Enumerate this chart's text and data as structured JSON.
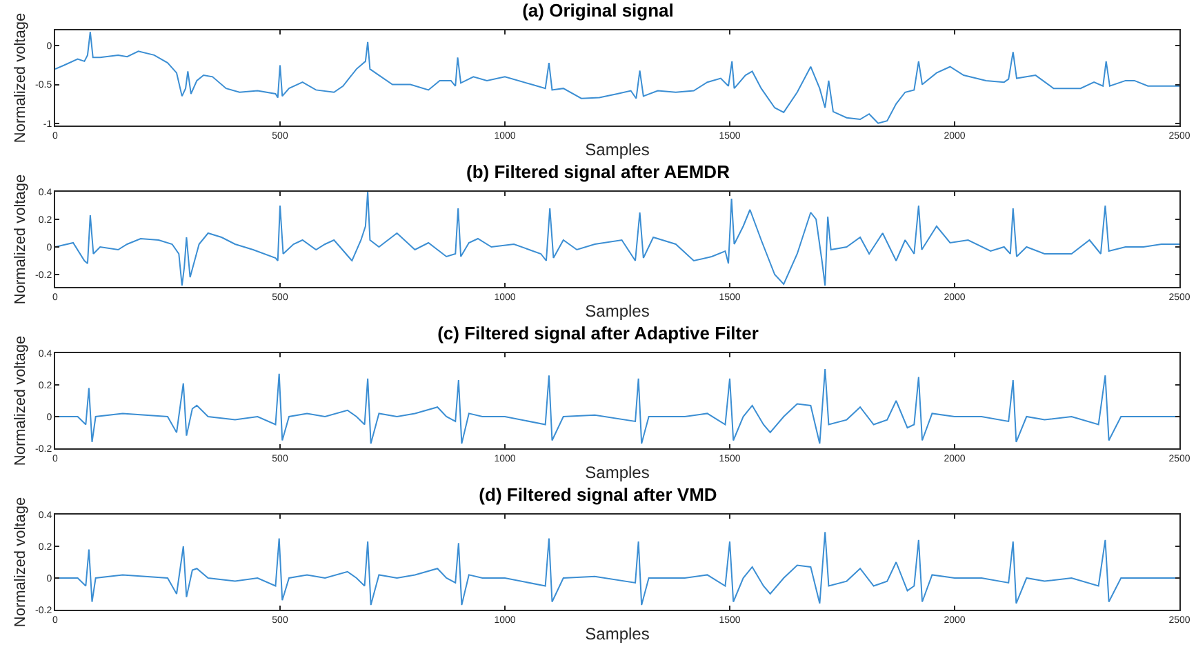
{
  "chart_data": [
    {
      "type": "line",
      "title": "(a) Original signal",
      "xlabel": "Samples",
      "ylabel": "Normalized voltage",
      "xlim": [
        0,
        2500
      ],
      "xticks": [
        0,
        500,
        1000,
        1500,
        2000,
        2500
      ],
      "ylim": [
        -1.03,
        0.2
      ],
      "yticks": [
        -1,
        -0.5,
        0
      ],
      "grid": false,
      "series": [
        {
          "color": "#3b8ed3",
          "x": [
            0,
            20,
            50,
            65,
            72,
            78,
            84,
            100,
            140,
            160,
            185,
            220,
            250,
            270,
            282,
            290,
            295,
            302,
            315,
            330,
            350,
            380,
            410,
            450,
            490,
            495,
            500,
            505,
            520,
            550,
            580,
            620,
            640,
            670,
            690,
            695,
            700,
            720,
            750,
            790,
            830,
            855,
            880,
            890,
            895,
            902,
            930,
            960,
            1000,
            1060,
            1090,
            1098,
            1105,
            1130,
            1170,
            1210,
            1250,
            1280,
            1292,
            1300,
            1308,
            1340,
            1380,
            1420,
            1450,
            1480,
            1497,
            1505,
            1510,
            1535,
            1550,
            1570,
            1600,
            1620,
            1650,
            1680,
            1700,
            1712,
            1720,
            1730,
            1760,
            1790,
            1810,
            1830,
            1850,
            1870,
            1890,
            1910,
            1920,
            1928,
            1960,
            1990,
            2020,
            2070,
            2110,
            2120,
            2130,
            2138,
            2180,
            2220,
            2280,
            2310,
            2330,
            2337,
            2345,
            2380,
            2400,
            2430,
            2500
          ],
          "values": [
            -0.3,
            -0.25,
            -0.17,
            -0.2,
            -0.12,
            0.18,
            -0.15,
            -0.15,
            -0.12,
            -0.14,
            -0.07,
            -0.12,
            -0.22,
            -0.35,
            -0.65,
            -0.55,
            -0.33,
            -0.62,
            -0.45,
            -0.38,
            -0.4,
            -0.55,
            -0.6,
            -0.58,
            -0.62,
            -0.67,
            -0.25,
            -0.65,
            -0.55,
            -0.47,
            -0.57,
            -0.6,
            -0.52,
            -0.3,
            -0.2,
            0.05,
            -0.3,
            -0.38,
            -0.5,
            -0.5,
            -0.57,
            -0.45,
            -0.45,
            -0.52,
            -0.15,
            -0.48,
            -0.4,
            -0.45,
            -0.4,
            -0.5,
            -0.55,
            -0.22,
            -0.57,
            -0.55,
            -0.68,
            -0.67,
            -0.62,
            -0.58,
            -0.68,
            -0.32,
            -0.65,
            -0.58,
            -0.6,
            -0.58,
            -0.47,
            -0.42,
            -0.52,
            -0.2,
            -0.55,
            -0.38,
            -0.33,
            -0.55,
            -0.8,
            -0.86,
            -0.6,
            -0.27,
            -0.55,
            -0.8,
            -0.45,
            -0.85,
            -0.93,
            -0.95,
            -0.88,
            -1.0,
            -0.97,
            -0.75,
            -0.6,
            -0.57,
            -0.2,
            -0.5,
            -0.35,
            -0.27,
            -0.38,
            -0.45,
            -0.47,
            -0.43,
            -0.08,
            -0.42,
            -0.38,
            -0.55,
            -0.55,
            -0.47,
            -0.52,
            -0.2,
            -0.52,
            -0.45,
            -0.45,
            -0.52,
            -0.52
          ]
        }
      ]
    },
    {
      "type": "line",
      "title": "(b) Filtered signal after AEMDR",
      "xlabel": "Samples",
      "ylabel": "Normalized voltage",
      "xlim": [
        0,
        2500
      ],
      "xticks": [
        0,
        500,
        1000,
        1500,
        2000,
        2500
      ],
      "ylim": [
        -0.29,
        0.4
      ],
      "yticks": [
        -0.2,
        0,
        0.2,
        0.4
      ],
      "grid": false,
      "series": [
        {
          "color": "#3b8ed3",
          "x": [
            0,
            40,
            65,
            72,
            78,
            85,
            100,
            140,
            160,
            190,
            230,
            260,
            275,
            282,
            287,
            292,
            300,
            320,
            340,
            370,
            400,
            440,
            490,
            495,
            500,
            507,
            530,
            550,
            580,
            600,
            620,
            660,
            680,
            690,
            695,
            700,
            720,
            760,
            800,
            830,
            870,
            890,
            896,
            902,
            920,
            940,
            970,
            1020,
            1080,
            1092,
            1100,
            1108,
            1130,
            1160,
            1200,
            1260,
            1290,
            1300,
            1308,
            1330,
            1380,
            1420,
            1460,
            1490,
            1497,
            1504,
            1510,
            1530,
            1545,
            1570,
            1600,
            1620,
            1650,
            1680,
            1692,
            1705,
            1712,
            1718,
            1725,
            1760,
            1790,
            1810,
            1840,
            1870,
            1890,
            1910,
            1920,
            1927,
            1960,
            1990,
            2030,
            2080,
            2110,
            2124,
            2130,
            2138,
            2160,
            2200,
            2260,
            2300,
            2325,
            2335,
            2343,
            2380,
            2420,
            2460,
            2500
          ],
          "values": [
            0,
            0.03,
            -0.1,
            -0.12,
            0.23,
            -0.05,
            0,
            -0.02,
            0.02,
            0.06,
            0.05,
            0.02,
            -0.05,
            -0.28,
            -0.15,
            0.07,
            -0.22,
            0.02,
            0.1,
            0.07,
            0.02,
            -0.02,
            -0.08,
            -0.1,
            0.3,
            -0.05,
            0.02,
            0.05,
            -0.02,
            0.02,
            0.05,
            -0.1,
            0.05,
            0.15,
            0.4,
            0.05,
            0,
            0.1,
            -0.02,
            0.03,
            -0.07,
            -0.05,
            0.28,
            -0.07,
            0.03,
            0.06,
            0,
            0.02,
            -0.05,
            -0.1,
            0.28,
            -0.08,
            0.05,
            -0.02,
            0.02,
            0.05,
            -0.1,
            0.25,
            -0.08,
            0.07,
            0.02,
            -0.1,
            -0.07,
            -0.03,
            -0.12,
            0.35,
            0.02,
            0.15,
            0.27,
            0.05,
            -0.2,
            -0.27,
            -0.05,
            0.25,
            0.2,
            -0.1,
            -0.28,
            0.22,
            -0.02,
            0,
            0.07,
            -0.05,
            0.1,
            -0.1,
            0.05,
            -0.05,
            0.3,
            -0.02,
            0.15,
            0.03,
            0.05,
            -0.03,
            0,
            -0.05,
            0.28,
            -0.07,
            0,
            -0.05,
            -0.05,
            0.05,
            -0.05,
            0.3,
            -0.03,
            0,
            0,
            0.02,
            0.02
          ]
        }
      ]
    },
    {
      "type": "line",
      "title": "(c) Filtered signal after Adaptive Filter",
      "xlabel": "Samples",
      "ylabel": "Normalized voltage",
      "xlim": [
        0,
        2500
      ],
      "xticks": [
        0,
        500,
        1000,
        1500,
        2000,
        2500
      ],
      "ylim": [
        -0.2,
        0.4
      ],
      "yticks": [
        -0.2,
        0,
        0.2,
        0.4
      ],
      "grid": false,
      "series": [
        {
          "color": "#3b8ed3",
          "x": [
            0,
            50,
            68,
            75,
            82,
            90,
            150,
            250,
            270,
            285,
            292,
            305,
            315,
            340,
            400,
            450,
            490,
            498,
            505,
            520,
            560,
            600,
            650,
            670,
            688,
            695,
            702,
            720,
            760,
            800,
            850,
            870,
            890,
            897,
            904,
            920,
            950,
            1000,
            1090,
            1098,
            1105,
            1130,
            1200,
            1290,
            1297,
            1304,
            1320,
            1400,
            1450,
            1490,
            1500,
            1508,
            1530,
            1550,
            1575,
            1590,
            1620,
            1650,
            1680,
            1700,
            1712,
            1720,
            1760,
            1790,
            1820,
            1850,
            1870,
            1895,
            1910,
            1920,
            1928,
            1950,
            2000,
            2060,
            2120,
            2130,
            2137,
            2160,
            2200,
            2260,
            2320,
            2335,
            2343,
            2370,
            2450,
            2500
          ],
          "values": [
            0,
            0,
            -0.05,
            0.18,
            -0.16,
            0,
            0.02,
            0,
            -0.1,
            0.21,
            -0.12,
            0.05,
            0.07,
            0,
            -0.02,
            0,
            -0.05,
            0.27,
            -0.15,
            0,
            0.02,
            0,
            0.04,
            0,
            -0.05,
            0.24,
            -0.17,
            0.02,
            0,
            0.02,
            0.06,
            0,
            -0.03,
            0.23,
            -0.17,
            0.02,
            0,
            0,
            -0.05,
            0.26,
            -0.15,
            0,
            0.01,
            -0.03,
            0.24,
            -0.17,
            0,
            0,
            0.02,
            -0.05,
            0.24,
            -0.15,
            0,
            0.07,
            -0.05,
            -0.1,
            0,
            0.08,
            0.07,
            -0.17,
            0.3,
            -0.05,
            -0.02,
            0.06,
            -0.05,
            -0.02,
            0.1,
            -0.07,
            -0.05,
            0.25,
            -0.15,
            0.02,
            0,
            0,
            -0.03,
            0.23,
            -0.16,
            0,
            -0.02,
            0,
            -0.05,
            0.26,
            -0.15,
            0,
            0,
            0
          ]
        }
      ]
    },
    {
      "type": "line",
      "title": "(d) Filtered signal after VMD",
      "xlabel": "Samples",
      "ylabel": "Normalized voltage",
      "xlim": [
        0,
        2500
      ],
      "xticks": [
        0,
        500,
        1000,
        1500,
        2000,
        2500
      ],
      "ylim": [
        -0.2,
        0.4
      ],
      "yticks": [
        -0.2,
        0,
        0.2,
        0.4
      ],
      "grid": false,
      "series": [
        {
          "color": "#3b8ed3",
          "x": [
            0,
            50,
            68,
            75,
            82,
            90,
            150,
            250,
            270,
            285,
            292,
            305,
            315,
            340,
            400,
            450,
            490,
            498,
            505,
            520,
            560,
            600,
            650,
            670,
            688,
            695,
            702,
            720,
            760,
            800,
            850,
            870,
            890,
            897,
            904,
            920,
            950,
            1000,
            1090,
            1098,
            1105,
            1130,
            1200,
            1290,
            1297,
            1304,
            1320,
            1400,
            1450,
            1490,
            1500,
            1508,
            1530,
            1550,
            1575,
            1590,
            1620,
            1650,
            1680,
            1700,
            1712,
            1720,
            1760,
            1790,
            1820,
            1850,
            1870,
            1895,
            1910,
            1920,
            1928,
            1950,
            2000,
            2060,
            2120,
            2130,
            2137,
            2160,
            2200,
            2260,
            2320,
            2335,
            2343,
            2370,
            2450,
            2500
          ],
          "values": [
            0,
            0,
            -0.05,
            0.18,
            -0.15,
            0,
            0.02,
            0,
            -0.1,
            0.2,
            -0.12,
            0.05,
            0.06,
            0,
            -0.02,
            0,
            -0.05,
            0.25,
            -0.14,
            0,
            0.02,
            0,
            0.04,
            0,
            -0.05,
            0.23,
            -0.17,
            0.02,
            0,
            0.02,
            0.06,
            0,
            -0.03,
            0.22,
            -0.17,
            0.02,
            0,
            0,
            -0.05,
            0.25,
            -0.15,
            0,
            0.01,
            -0.03,
            0.23,
            -0.17,
            0,
            0,
            0.02,
            -0.05,
            0.23,
            -0.15,
            0,
            0.07,
            -0.05,
            -0.1,
            0,
            0.08,
            0.07,
            -0.16,
            0.29,
            -0.05,
            -0.02,
            0.06,
            -0.05,
            -0.02,
            0.1,
            -0.08,
            -0.05,
            0.24,
            -0.15,
            0.02,
            0,
            0,
            -0.03,
            0.23,
            -0.16,
            0,
            -0.02,
            0,
            -0.05,
            0.24,
            -0.15,
            0,
            0,
            0
          ]
        }
      ]
    }
  ]
}
